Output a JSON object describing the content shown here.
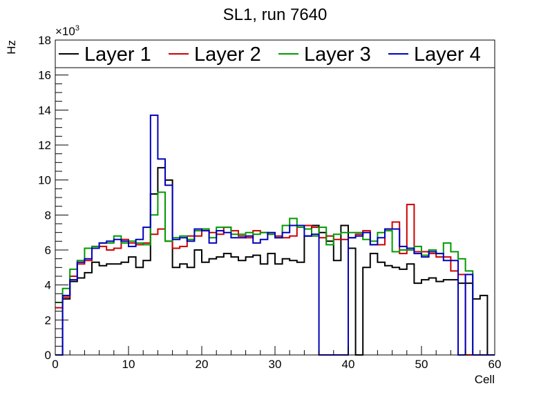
{
  "chart_data": {
    "type": "line",
    "title": "SL1, run 7640",
    "xlabel": "Cell",
    "ylabel": "Hz",
    "y_multiplier": "×10",
    "y_multiplier_exp": "3",
    "xlim": [
      0,
      60
    ],
    "ylim": [
      0,
      18
    ],
    "x_ticks": [
      0,
      10,
      20,
      30,
      40,
      50,
      60
    ],
    "y_ticks": [
      0,
      2,
      4,
      6,
      8,
      10,
      12,
      14,
      16,
      18
    ],
    "bin_width": 1,
    "bin_start": 0,
    "series": [
      {
        "name": "Layer 1",
        "color": "#000000",
        "values": [
          0,
          3.2,
          4.2,
          4.4,
          4.7,
          5.3,
          5.1,
          5.2,
          5.2,
          5.3,
          5.6,
          5.0,
          5.4,
          9.2,
          10.7,
          10.0,
          5.0,
          5.2,
          5.0,
          6.0,
          5.3,
          5.5,
          5.6,
          5.8,
          5.6,
          5.4,
          5.6,
          5.7,
          5.2,
          5.8,
          5.2,
          5.5,
          5.4,
          5.3,
          6.8,
          7.4,
          7.0,
          6.5,
          5.4,
          7.4,
          6.1,
          0,
          5.0,
          5.8,
          5.3,
          5.1,
          5.0,
          4.9,
          5.2,
          4.1,
          4.3,
          4.4,
          4.2,
          4.3,
          4.3,
          4.1,
          4.1,
          3.2,
          3.4,
          0
        ]
      },
      {
        "name": "Layer 2",
        "color": "#cc0000",
        "values": [
          2.7,
          3.3,
          4.5,
          5.2,
          5.4,
          6.2,
          6.2,
          6.0,
          6.1,
          6.6,
          6.4,
          6.3,
          6.4,
          6.9,
          7.2,
          6.5,
          6.1,
          6.2,
          6.8,
          6.8,
          7.2,
          7.0,
          6.9,
          7.3,
          7.1,
          6.8,
          6.7,
          7.1,
          7.0,
          6.9,
          6.8,
          6.7,
          6.8,
          7.4,
          7.4,
          7.3,
          6.7,
          6.8,
          6.6,
          6.6,
          6.7,
          6.9,
          7.1,
          6.3,
          6.3,
          7.2,
          7.6,
          5.8,
          8.6,
          5.9,
          5.9,
          5.8,
          5.6,
          5.6,
          4.8,
          4.6,
          0,
          0,
          0,
          0
        ]
      },
      {
        "name": "Layer 3",
        "color": "#009900",
        "values": [
          3.0,
          3.8,
          4.9,
          5.4,
          6.1,
          6.2,
          6.4,
          6.4,
          6.8,
          6.4,
          6.5,
          6.4,
          6.3,
          8.0,
          9.3,
          6.5,
          6.7,
          6.8,
          6.6,
          7.1,
          7.2,
          6.7,
          7.3,
          7.3,
          6.9,
          6.9,
          7.0,
          6.9,
          7.0,
          6.9,
          6.7,
          7.4,
          7.8,
          7.3,
          7.2,
          6.8,
          7.3,
          6.3,
          6.9,
          7.0,
          7.0,
          7.0,
          6.6,
          6.5,
          7.0,
          7.1,
          5.9,
          6.0,
          6.0,
          6.2,
          5.7,
          6.0,
          5.8,
          6.4,
          5.9,
          5.5,
          4.8,
          0,
          0,
          0
        ]
      },
      {
        "name": "Layer 4",
        "color": "#0000bb",
        "values": [
          0,
          3.4,
          4.3,
          5.3,
          5.5,
          6.1,
          6.4,
          6.5,
          6.6,
          6.5,
          6.2,
          6.6,
          7.3,
          13.7,
          11.2,
          9.7,
          6.6,
          6.7,
          6.5,
          7.2,
          7.1,
          6.4,
          7.1,
          7.0,
          6.7,
          6.7,
          6.8,
          6.4,
          6.6,
          7.0,
          6.7,
          7.0,
          7.4,
          7.4,
          6.8,
          6.9,
          0,
          0,
          0,
          0,
          6.7,
          6.8,
          7.0,
          6.3,
          6.7,
          7.2,
          7.2,
          6.2,
          6.1,
          5.8,
          5.6,
          5.9,
          5.8,
          5.4,
          5.4,
          0,
          4.6,
          0,
          0,
          0
        ]
      }
    ]
  }
}
